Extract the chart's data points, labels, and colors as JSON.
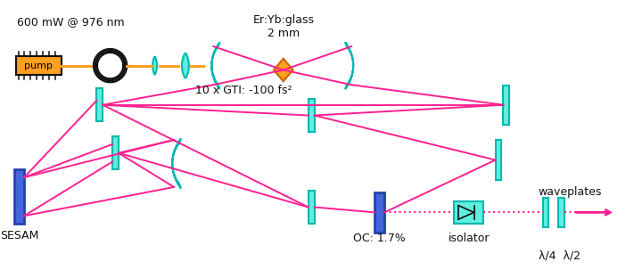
{
  "bg_color": "#ffffff",
  "cyan_fill": "#5FEFDF",
  "cyan_edge": "#00B8B0",
  "blue_fill": "#4466DD",
  "blue_edge": "#2244AA",
  "orange_fill": "#FFA020",
  "orange_edge": "#CC6600",
  "beam_color": "#FF2090",
  "pump_color": "#FFA020",
  "black": "#111111",
  "title_text": "600 mW @ 976 nm",
  "gti_text": "10 x GTI: -100 fs²",
  "crystal_label": "Er:Yb:glass\n2 mm",
  "sesam_label": "SESAM",
  "oc_label": "OC: 1.7%",
  "isolator_label": "isolator",
  "waveplates_label": "waveplates",
  "lambda_label": "λ/4  λ/2"
}
